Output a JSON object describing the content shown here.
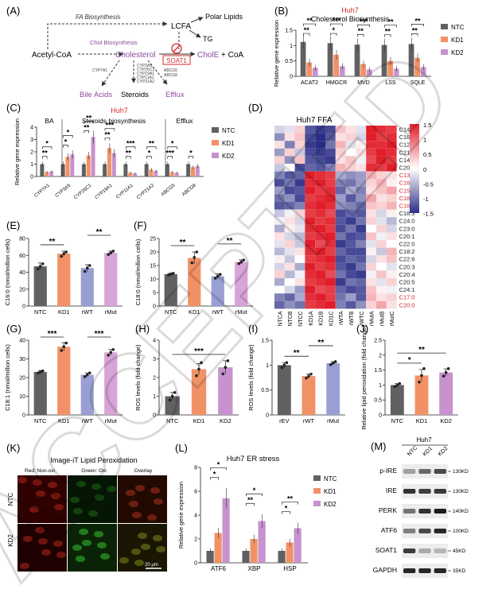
{
  "colors": {
    "ntc": "#616161",
    "kd1": "#f19266",
    "kd2": "#c792cd",
    "rwt": "#9a9fd3",
    "rmut": "#d8a3d6",
    "rev": "#616161",
    "red": "#d42a2a",
    "purple": "#8b4a9e",
    "hm_high": "#e11e2a",
    "hm_low": "#2b2e86"
  },
  "watermark": "ACCEPTED",
  "panelA": {
    "label": "(A)",
    "fa_biosynthesis": "FA Biosynthesis",
    "chol_biosynthesis": "Chol Biosynthesis",
    "acetyl_coa": "Acetyl-CoA",
    "cholesterol": "Cholesterol",
    "lcfa": "LCFA",
    "polar_lipids": "Polar Lipids",
    "tg": "TG",
    "soat1": "SOAT1",
    "chole": "CholE",
    "coa": "+ CoA",
    "bile_acids": "Bile Acids",
    "steroids": "Steroids",
    "efflux": "Efflux",
    "cyp7a1": "CYP7A1",
    "steroid_genes": [
      "CYP3A5",
      "CYP26C1",
      "CYP19A1",
      "CYP11A1",
      "CYP21A2"
    ],
    "abc_genes": [
      "ABCG5",
      "ABCG8"
    ]
  },
  "panelB": {
    "label": "(B)",
    "title_red": "Huh7",
    "title": "Cholesterol Biosynthesis",
    "chart_data": {
      "type": "bar",
      "ylabel": "Relative gene expression",
      "ylim": [
        0,
        1.5
      ],
      "yticks": [
        0,
        0.5,
        1.0,
        1.5
      ],
      "categories": [
        "ACAT2",
        "HMGCR",
        "MVD",
        "LSS",
        "SQLE"
      ],
      "series": [
        {
          "name": "NTC",
          "values": [
            1.12,
            1.08,
            1.03,
            1.02,
            1.05
          ]
        },
        {
          "name": "KD1",
          "values": [
            0.45,
            0.7,
            0.4,
            0.5,
            0.6
          ]
        },
        {
          "name": "KD2",
          "values": [
            0.28,
            0.33,
            0.22,
            0.25,
            0.3
          ]
        }
      ],
      "sig_top": [
        "**",
        "***",
        "***",
        "**",
        "**"
      ],
      "sig_bottom": [
        "**",
        "*",
        "**",
        "**",
        "**"
      ]
    }
  },
  "panelC": {
    "label": "(C)",
    "title_red": "Huh7",
    "groups": [
      {
        "name": "BA"
      },
      {
        "name": "Steroids biosynthesis"
      },
      {
        "name": "Efflux"
      }
    ],
    "chart_data": {
      "type": "bar",
      "ylabel": "Relative gene expression",
      "ylim": [
        0,
        4
      ],
      "yticks": [
        0,
        1,
        2,
        3,
        4
      ],
      "categories": [
        "CYP7A1",
        "CYP3A5",
        "CYP26C1",
        "CYP19A1",
        "CYP11A1",
        "CYP21A2",
        "ABCG5",
        "ABCG8"
      ],
      "series": [
        {
          "name": "NTC",
          "values": [
            1.0,
            1.0,
            1.0,
            1.0,
            1.0,
            1.0,
            1.0,
            1.0
          ]
        },
        {
          "name": "KD1",
          "values": [
            0.35,
            1.6,
            1.7,
            2.3,
            0.3,
            0.55,
            0.35,
            0.75
          ]
        },
        {
          "name": "KD2",
          "values": [
            0.4,
            1.8,
            3.2,
            1.9,
            0.25,
            0.45,
            0.3,
            0.85
          ]
        }
      ],
      "sig_top": [
        "*",
        "*",
        "**",
        "***",
        "***",
        "**",
        "*",
        ""
      ],
      "sig_bottom": [
        "**",
        "*",
        "**",
        "**",
        "**",
        "*",
        "***",
        "*"
      ]
    }
  },
  "legend3": [
    "NTC",
    "KD1",
    "KD2"
  ],
  "panelD": {
    "label": "(D)",
    "title": "Huh7 FFA",
    "columns": [
      "NTCA",
      "NTCB",
      "NTCC",
      "KD1A",
      "KD1B",
      "KD1C",
      "rWTA",
      "rWTB",
      "rWTC",
      "rMutA",
      "rMutB",
      "rMutC"
    ],
    "rows": [
      {
        "name": "C14:0",
        "red": false,
        "v": [
          -0.3,
          -0.2,
          0.3,
          -1.2,
          -1.4,
          -1.3,
          0.4,
          0.2,
          -0.2,
          1.5,
          1.4,
          1.3
        ]
      },
      {
        "name": "C16:1",
        "red": false,
        "v": [
          -0.8,
          0.2,
          0.4,
          -1.3,
          -1.5,
          -1.2,
          0.2,
          0.3,
          -0.3,
          1.5,
          1.3,
          1.4
        ]
      },
      {
        "name": "C12:0",
        "red": false,
        "v": [
          0.2,
          -0.9,
          0.3,
          -1.4,
          -1.5,
          -1.0,
          0.5,
          -0.2,
          0.1,
          1.4,
          1.4,
          1.5
        ]
      },
      {
        "name": "C21:0",
        "red": false,
        "v": [
          -0.7,
          0.3,
          -0.4,
          -1.3,
          -1.4,
          -1.3,
          0.3,
          0.0,
          0.2,
          1.3,
          1.5,
          1.4
        ]
      },
      {
        "name": "C14:1",
        "red": false,
        "v": [
          0.3,
          -0.8,
          0.4,
          -1.2,
          -1.3,
          -1.4,
          0.2,
          0.4,
          -0.1,
          1.2,
          1.5,
          1.3
        ]
      },
      {
        "name": "C20:2",
        "red": false,
        "v": [
          -0.4,
          0.0,
          -1.3,
          -1.1,
          -1.2,
          -0.9,
          0.5,
          0.3,
          0.2,
          1.4,
          1.3,
          1.5
        ]
      },
      {
        "name": "C13:0",
        "red": true,
        "v": [
          -0.9,
          -1.2,
          -1.1,
          1.5,
          1.4,
          1.3,
          -0.6,
          -0.8,
          -0.7,
          0.5,
          0.3,
          0.2
        ]
      },
      {
        "name": "C16:0",
        "red": true,
        "v": [
          -1.3,
          -1.0,
          -1.4,
          1.4,
          1.5,
          1.3,
          -0.9,
          -1.0,
          -0.7,
          0.3,
          0.5,
          0.1
        ]
      },
      {
        "name": "C15:0",
        "red": true,
        "v": [
          -0.7,
          -1.3,
          -1.2,
          1.5,
          1.3,
          1.4,
          -1.1,
          -0.6,
          -0.9,
          0.2,
          0.4,
          0.6
        ]
      },
      {
        "name": "C18:0",
        "red": true,
        "v": [
          -1.0,
          -0.8,
          -1.3,
          1.3,
          1.4,
          1.5,
          -0.7,
          -1.2,
          -0.8,
          0.6,
          0.2,
          0.3
        ]
      },
      {
        "name": "C18:1",
        "red": true,
        "v": [
          -1.2,
          -1.1,
          -0.9,
          1.4,
          1.5,
          1.4,
          -0.8,
          -0.9,
          -1.1,
          0.4,
          0.3,
          0.5
        ]
      },
      {
        "name": "C18:3",
        "red": false,
        "v": [
          -0.4,
          -0.1,
          0.3,
          1.3,
          1.4,
          1.2,
          -1.3,
          -1.1,
          -1.2,
          0.2,
          -0.3,
          0.1
        ]
      },
      {
        "name": "C24:0",
        "red": false,
        "v": [
          -0.1,
          0.2,
          -0.3,
          1.5,
          1.3,
          1.4,
          -1.2,
          -1.4,
          -1.0,
          0.3,
          -0.2,
          -0.5
        ]
      },
      {
        "name": "C23:0",
        "red": false,
        "v": [
          -0.6,
          0.1,
          -0.2,
          1.4,
          1.5,
          1.3,
          -1.3,
          -1.0,
          -1.4,
          0.0,
          0.3,
          -0.3
        ]
      },
      {
        "name": "C20:1",
        "red": false,
        "v": [
          0.2,
          -0.3,
          -0.5,
          1.3,
          1.4,
          1.5,
          -1.0,
          -1.3,
          -1.2,
          0.4,
          -0.1,
          0.2
        ]
      },
      {
        "name": "C22:0",
        "red": false,
        "v": [
          -0.2,
          0.3,
          -0.4,
          1.5,
          1.2,
          1.4,
          -1.4,
          -1.2,
          -0.9,
          -0.2,
          0.3,
          0.0
        ]
      },
      {
        "name": "C18:2",
        "red": false,
        "v": [
          -0.5,
          -0.2,
          0.2,
          1.4,
          1.5,
          1.3,
          -1.1,
          -1.3,
          -1.3,
          0.1,
          -0.4,
          0.5
        ]
      },
      {
        "name": "C22:6",
        "red": false,
        "v": [
          0.1,
          -0.4,
          0.0,
          1.3,
          1.4,
          1.5,
          -1.3,
          -1.1,
          -1.2,
          -0.3,
          0.2,
          0.4
        ]
      },
      {
        "name": "C20:3",
        "red": false,
        "v": [
          -0.3,
          0.2,
          -0.6,
          1.5,
          1.3,
          1.4,
          -1.2,
          -1.4,
          -1.0,
          0.3,
          0.0,
          -0.2
        ]
      },
      {
        "name": "C20:4",
        "red": false,
        "v": [
          0.3,
          -0.5,
          -0.1,
          1.4,
          1.5,
          1.2,
          -1.0,
          -1.3,
          -1.4,
          -0.1,
          0.4,
          0.1
        ]
      },
      {
        "name": "C20:5",
        "red": false,
        "v": [
          -0.6,
          0.0,
          0.2,
          1.3,
          1.4,
          1.5,
          -1.4,
          -1.0,
          -1.1,
          0.2,
          -0.2,
          0.3
        ]
      },
      {
        "name": "C24:1",
        "red": false,
        "v": [
          0.0,
          -0.3,
          -0.7,
          1.5,
          1.2,
          1.3,
          -1.1,
          -1.3,
          -1.2,
          0.4,
          0.1,
          -0.1
        ]
      },
      {
        "name": "C17:0",
        "red": true,
        "v": [
          -0.9,
          -1.1,
          -0.6,
          1.4,
          1.5,
          1.3,
          -1.0,
          -0.7,
          -1.2,
          0.5,
          0.2,
          0.3
        ]
      },
      {
        "name": "C20:0",
        "red": true,
        "v": [
          -1.1,
          -0.8,
          -1.0,
          1.3,
          1.4,
          1.5,
          -0.9,
          -1.2,
          -0.8,
          0.3,
          0.6,
          0.2
        ]
      }
    ],
    "scale_ticks": [
      1.5,
      1,
      0.5,
      0,
      -0.5,
      -1,
      -1.5
    ]
  },
  "panelE": {
    "label": "(E)",
    "chart_data": {
      "type": "bar",
      "ylabel": "C16:0 (nmol/million cells)",
      "ylim": [
        0,
        80
      ],
      "yticks": [
        0,
        20,
        40,
        60,
        80
      ],
      "categories": [
        "NTC",
        "KD1",
        "rWT",
        "rMut"
      ],
      "values": [
        47,
        62,
        45,
        63
      ],
      "errors": [
        4,
        3,
        4,
        2
      ],
      "points": [
        [
          44,
          47,
          50
        ],
        [
          59,
          62,
          64
        ],
        [
          41,
          45,
          48
        ],
        [
          61,
          63,
          65
        ]
      ]
    },
    "sig": [
      {
        "a": 0,
        "b": 1,
        "t": "**"
      },
      {
        "a": 2,
        "b": 3,
        "t": "**"
      }
    ]
  },
  "panelF": {
    "label": "(F)",
    "chart_data": {
      "type": "bar",
      "ylabel": "C18:0 (nmol/million cells)",
      "ylim": [
        0,
        25
      ],
      "yticks": [
        0,
        5,
        10,
        15,
        20,
        25
      ],
      "categories": [
        "NTC",
        "KD1",
        "rWT",
        "rMut"
      ],
      "values": [
        11.8,
        17.8,
        11.0,
        16.3
      ],
      "errors": [
        0.4,
        2.2,
        0.9,
        0.8
      ],
      "points": [
        [
          11.5,
          11.8,
          12.1
        ],
        [
          16,
          18,
          20
        ],
        [
          10.3,
          11,
          11.7
        ],
        [
          15.7,
          16.3,
          17
        ]
      ]
    },
    "sig": [
      {
        "a": 0,
        "b": 1,
        "t": "**"
      },
      {
        "a": 2,
        "b": 3,
        "t": "**"
      }
    ]
  },
  "panelG": {
    "label": "(G)",
    "chart_data": {
      "type": "bar",
      "ylabel": "C18:1 (nmol/million cells)",
      "ylim": [
        0,
        40
      ],
      "yticks": [
        0,
        10,
        20,
        30,
        40
      ],
      "categories": [
        "NTC",
        "KD1",
        "rWT",
        "rMut"
      ],
      "values": [
        23,
        36.5,
        21.5,
        33.5
      ],
      "errors": [
        0.8,
        2.2,
        1.0,
        1.5
      ],
      "points": [
        [
          22.4,
          23,
          23.6
        ],
        [
          34.5,
          36.5,
          38.5
        ],
        [
          20.5,
          21.5,
          22.5
        ],
        [
          32,
          33.5,
          35
        ]
      ]
    },
    "sig": [
      {
        "a": 0,
        "b": 1,
        "t": "***"
      },
      {
        "a": 2,
        "b": 3,
        "t": "***"
      }
    ]
  },
  "panelH": {
    "label": "(H)",
    "chart_data": {
      "type": "bar",
      "ylabel": "ROS levels (fold change)",
      "ylim": [
        0,
        4
      ],
      "yticks": [
        0,
        1,
        2,
        3,
        4
      ],
      "categories": [
        "NTC",
        "KD1",
        "KD2"
      ],
      "values": [
        1.0,
        2.45,
        2.55
      ],
      "errors": [
        0.2,
        0.3,
        0.35
      ],
      "points": [
        [
          0.8,
          1.0,
          1.2
        ],
        [
          2.1,
          2.45,
          2.8
        ],
        [
          2.2,
          2.55,
          2.9
        ]
      ]
    },
    "sig": [
      {
        "a": 0,
        "b": 2,
        "t": "***"
      }
    ]
  },
  "panelI": {
    "label": "(I)",
    "chart_data": {
      "type": "bar",
      "ylabel": "ROS levels (fold change)",
      "ylim": [
        0,
        1.5
      ],
      "yticks": [
        0,
        0.5,
        1.0,
        1.5
      ],
      "categories": [
        "rEV",
        "rWT",
        "rMut"
      ],
      "values": [
        1.0,
        0.78,
        1.04
      ],
      "errors": [
        0.05,
        0.04,
        0.03
      ],
      "points": [
        [
          0.95,
          1.0,
          1.05
        ],
        [
          0.74,
          0.78,
          0.82
        ],
        [
          1.01,
          1.04,
          1.07
        ]
      ]
    },
    "sig": [
      {
        "a": 0,
        "b": 1,
        "t": "**"
      },
      {
        "a": 1,
        "b": 2,
        "t": "**"
      }
    ]
  },
  "panelJ": {
    "label": "(J)",
    "chart_data": {
      "type": "bar",
      "ylabel": "Relative lipid peroxidation (fold change)",
      "ylim": [
        0,
        2.5
      ],
      "yticks": [
        0,
        0.5,
        1.0,
        1.5,
        2.0,
        2.5
      ],
      "categories": [
        "NTC",
        "KD1",
        "KD2"
      ],
      "values": [
        1.0,
        1.32,
        1.42
      ],
      "errors": [
        0.05,
        0.2,
        0.12
      ],
      "points": [
        [
          0.95,
          1.0,
          1.05
        ],
        [
          1.1,
          1.32,
          1.55
        ],
        [
          1.3,
          1.42,
          1.55
        ]
      ]
    },
    "sig": [
      {
        "a": 0,
        "b": 1,
        "t": "*"
      },
      {
        "a": 0,
        "b": 2,
        "t": "**"
      }
    ]
  },
  "panelK": {
    "label": "(K)",
    "title": "Image-iT Lipid Peroxidation",
    "channels": [
      "Red: Non-oxi",
      "Green: Oxi",
      "Overlay"
    ],
    "rows": [
      "NTC",
      "KD2"
    ],
    "scale_bar": "20 μm"
  },
  "panelL": {
    "label": "(L)",
    "title": "Huh7 ER stress",
    "chart_data": {
      "type": "bar",
      "ylabel": "Relative gene expression",
      "ylim": [
        0,
        8
      ],
      "yticks": [
        0,
        2,
        4,
        6,
        8
      ],
      "categories": [
        "ATF6",
        "XBP",
        "HSP"
      ],
      "series": [
        {
          "name": "NTC",
          "values": [
            1.0,
            1.0,
            1.0
          ]
        },
        {
          "name": "KD1",
          "values": [
            2.5,
            2.0,
            1.7
          ]
        },
        {
          "name": "KD2",
          "values": [
            5.4,
            3.5,
            2.9
          ]
        }
      ],
      "sig_top": [
        "*",
        "*",
        "**"
      ],
      "sig_bottom": [
        "*",
        "**",
        "*"
      ]
    }
  },
  "panelM": {
    "label": "(M)",
    "cell_line": "Huh7",
    "lanes": [
      "NTC",
      "KD1",
      "KD2"
    ],
    "bands": [
      {
        "name": "p-IRE",
        "kd": "130KD"
      },
      {
        "name": "IRE",
        "kd": "130KD"
      },
      {
        "name": "PERK",
        "kd": "140KD"
      },
      {
        "name": "ATF6",
        "kd": "100KD"
      },
      {
        "name": "SOAT1",
        "kd": "45KD"
      },
      {
        "name": "GAPDH",
        "kd": "35KD"
      }
    ]
  }
}
